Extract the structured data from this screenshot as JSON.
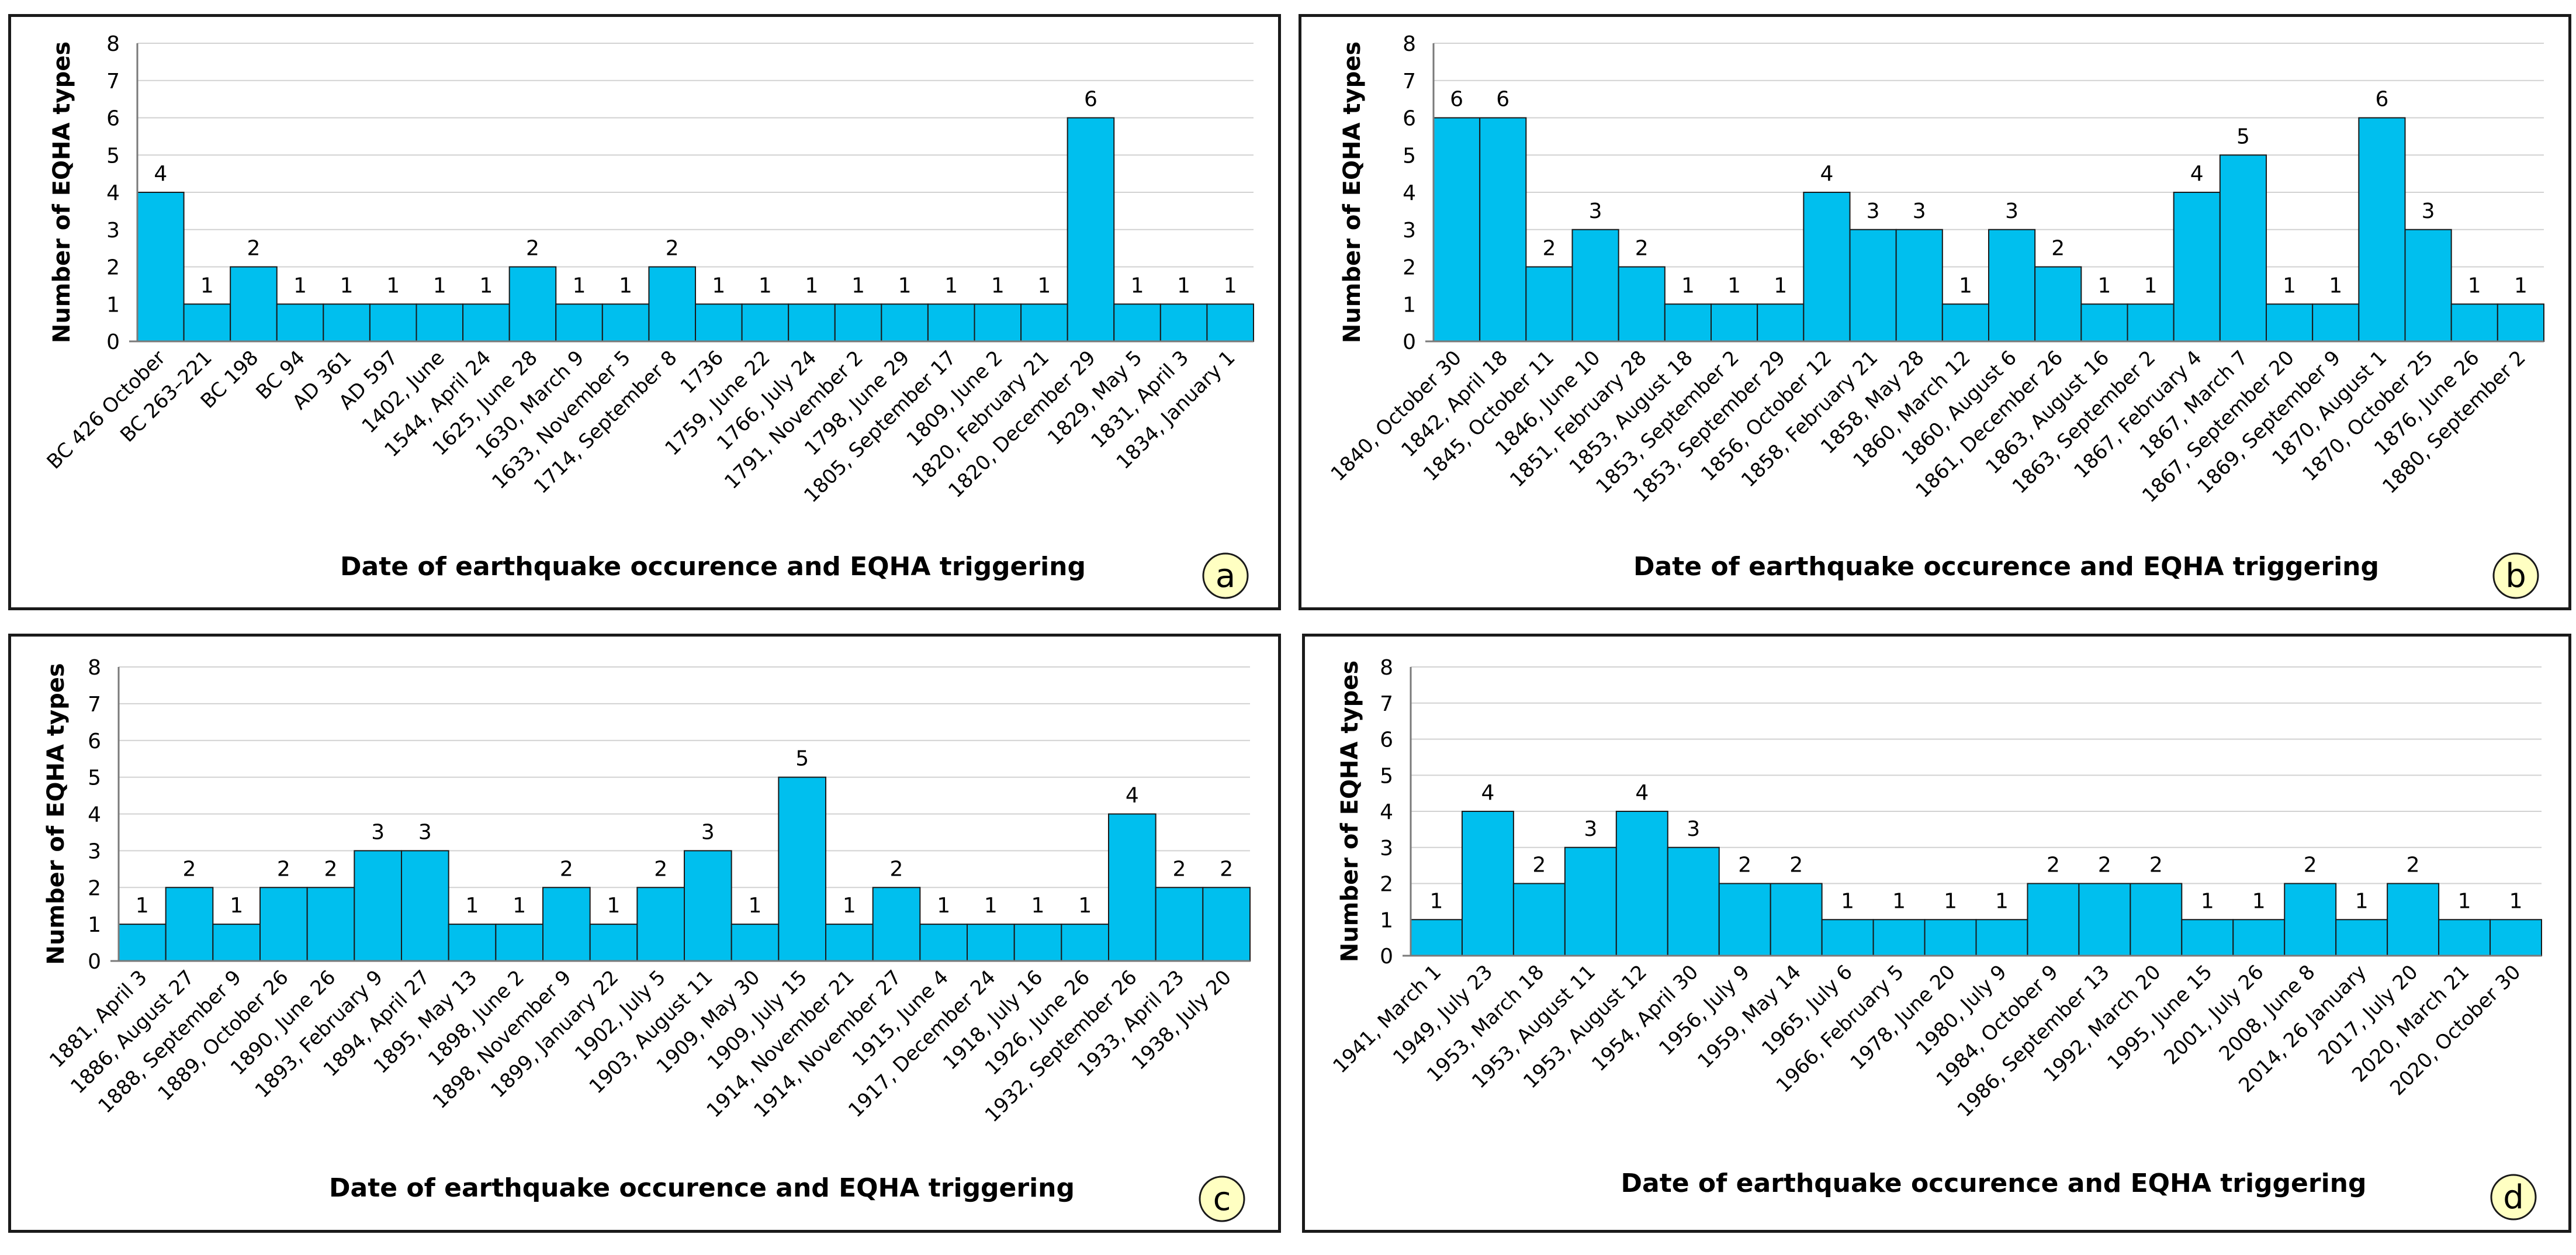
{
  "chart_data": [
    {
      "panel": "a",
      "type": "bar",
      "title": "",
      "xlabel": "Date of earthquake occurence and EQHA triggering",
      "ylabel": "Number of EQHA types",
      "ylim": [
        0,
        8
      ],
      "yticks": [
        0,
        1,
        2,
        3,
        4,
        5,
        6,
        7,
        8
      ],
      "grid": true,
      "categories": [
        "BC 426 October",
        "BC 263–221",
        "BC 198",
        "BC 94",
        "AD 361",
        "AD 597",
        "1402, June",
        "1544, April 24",
        "1625, June 28",
        "1630, March 9",
        "1633, November 5",
        "1714, September 8",
        "1736",
        "1759, June 22",
        "1766, July 24",
        "1791, November 2",
        "1798, June 29",
        "1805, September 17",
        "1809, June 2",
        "1820, February 21",
        "1820, December 29",
        "1829, May 5",
        "1831, April 3",
        "1834, January 1"
      ],
      "values": [
        4,
        1,
        2,
        1,
        1,
        1,
        1,
        1,
        2,
        1,
        1,
        2,
        1,
        1,
        1,
        1,
        1,
        1,
        1,
        1,
        6,
        1,
        1,
        1
      ]
    },
    {
      "panel": "b",
      "type": "bar",
      "title": "",
      "xlabel": "Date of earthquake occurence and EQHA triggering",
      "ylabel": "Number of EQHA types",
      "ylim": [
        0,
        8
      ],
      "yticks": [
        0,
        1,
        2,
        3,
        4,
        5,
        6,
        7,
        8
      ],
      "grid": true,
      "categories": [
        "1840, October 30",
        "1842, April 18",
        "1845, October 11",
        "1846, June 10",
        "1851, February 28",
        "1853, August 18",
        "1853, September 2",
        "1853, September 29",
        "1856, October 12",
        "1858, February 21",
        "1858, May 28",
        "1860, March 12",
        "1860, August 6",
        "1861, December 26",
        "1863, August 16",
        "1863, September 2",
        "1867, February 4",
        "1867, March 7",
        "1867, September 20",
        "1869, September 9",
        "1870, August 1",
        "1870, October 25",
        "1876, June 26",
        "1880, September 2"
      ],
      "values": [
        6,
        6,
        2,
        3,
        2,
        1,
        1,
        1,
        4,
        3,
        3,
        1,
        3,
        2,
        1,
        1,
        4,
        5,
        1,
        1,
        6,
        3,
        1,
        1
      ]
    },
    {
      "panel": "c",
      "type": "bar",
      "title": "",
      "xlabel": "Date of earthquake occurence and EQHA triggering",
      "ylabel": "Number of EQHA types",
      "ylim": [
        0,
        8
      ],
      "yticks": [
        0,
        1,
        2,
        3,
        4,
        5,
        6,
        7,
        8
      ],
      "grid": true,
      "categories": [
        "1881, April 3",
        "1886, August 27",
        "1888, September 9",
        "1889, October 26",
        "1890, June 26",
        "1893, February 9",
        "1894, April 27",
        "1895, May 13",
        "1898, June 2",
        "1898, November 9",
        "1899, January 22",
        "1902, July 5",
        "1903, August 11",
        "1909, May 30",
        "1909, July 15",
        "1914, November 21",
        "1914, November 27",
        "1915, June 4",
        "1917, December 24",
        "1918, July 16",
        "1926, June 26",
        "1932, September 26",
        "1933, April 23",
        "1938, July 20"
      ],
      "values": [
        1,
        2,
        1,
        2,
        2,
        3,
        3,
        1,
        1,
        2,
        1,
        2,
        3,
        1,
        5,
        1,
        2,
        1,
        1,
        1,
        1,
        4,
        2,
        2
      ]
    },
    {
      "panel": "d",
      "type": "bar",
      "title": "",
      "xlabel": "Date of earthquake occurence and EQHA triggering",
      "ylabel": "Number of EQHA types",
      "ylim": [
        0,
        8
      ],
      "yticks": [
        0,
        1,
        2,
        3,
        4,
        5,
        6,
        7,
        8
      ],
      "grid": true,
      "categories": [
        "1941, March 1",
        "1949, July 23",
        "1953, March 18",
        "1953, August 11",
        "1953, August 12",
        "1954, April 30",
        "1956, July 9",
        "1959, May 14",
        "1965, July 6",
        "1966, February 5",
        "1978, June 20",
        "1980, July 9",
        "1984, October 9",
        "1986, September 13",
        "1992, March 20",
        "1995, June 15",
        "2001, July 26",
        "2008, June 8",
        "2014, 26 January",
        "2017, July 20",
        "2020, March 21",
        "2020, October 30"
      ],
      "values": [
        1,
        4,
        2,
        3,
        4,
        3,
        2,
        2,
        1,
        1,
        1,
        1,
        2,
        2,
        2,
        1,
        1,
        2,
        1,
        2,
        1,
        1
      ]
    }
  ],
  "panels": [
    {
      "label": "a"
    },
    {
      "label": "b"
    },
    {
      "label": "c"
    },
    {
      "label": "d"
    }
  ]
}
